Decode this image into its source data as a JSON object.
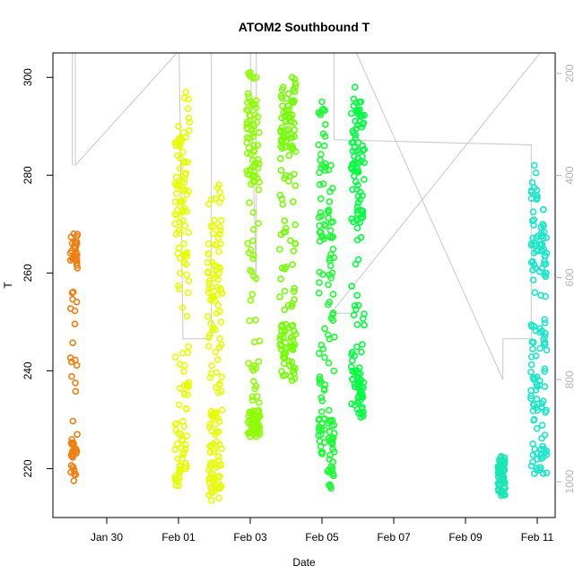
{
  "chart_data": {
    "type": "scatter",
    "title": "ATOM2 Southbound T",
    "xlabel": "Date",
    "ylabel": "T",
    "x_axis_type": "date",
    "xlim": [
      "2026-01-28T12:00",
      "2026-02-11T12:00"
    ],
    "x_ticks": [
      {
        "label": "Jan 30",
        "date": "2026-01-30"
      },
      {
        "label": "Feb 01",
        "date": "2026-02-01"
      },
      {
        "label": "Feb 03",
        "date": "2026-02-03"
      },
      {
        "label": "Feb 05",
        "date": "2026-02-05"
      },
      {
        "label": "Feb 07",
        "date": "2026-02-07"
      },
      {
        "label": "Feb 09",
        "date": "2026-02-09"
      },
      {
        "label": "Feb 11",
        "date": "2026-02-11"
      }
    ],
    "ylim": [
      210,
      305
    ],
    "y_ticks": [
      220,
      240,
      260,
      280,
      300
    ],
    "y2": {
      "description": "right axis, inverted",
      "lim": [
        1070,
        160
      ],
      "ticks": [
        200,
        400,
        600,
        800,
        1000
      ],
      "color": "#b3b3b3"
    },
    "grid": false,
    "legend": "none",
    "profiles": [
      {
        "date": "2026-01-29T02:00",
        "t_min": 217.5,
        "t_max": 268.0,
        "color": "#f07f10",
        "dense_bottom": [
          217,
          226
        ],
        "dense_top": [
          262,
          268
        ]
      },
      {
        "date": "2026-02-01T00:00",
        "t_min": 216.5,
        "t_max": 290.0,
        "color": "#e6ff00",
        "dense_bottom": [
          217,
          228
        ],
        "dense_top": [
          270,
          290
        ]
      },
      {
        "date": "2026-02-01T05:00",
        "t_min": 220.0,
        "t_max": 297.0,
        "color": "#e6ff00",
        "dense_bottom": [
          220,
          240
        ],
        "dense_top": [
          260,
          297
        ]
      },
      {
        "date": "2026-02-01T22:00",
        "t_min": 213.5,
        "t_max": 275.0,
        "color": "#e6ff00",
        "dense_bottom": [
          214,
          232
        ],
        "dense_top": [
          245,
          275
        ]
      },
      {
        "date": "2026-02-02T03:00",
        "t_min": 214.0,
        "t_max": 278.0,
        "color": "#e6ff00",
        "dense_bottom": [
          215,
          240
        ],
        "dense_top": [
          240,
          278
        ]
      },
      {
        "date": "2026-02-03T00:00",
        "t_min": 226.5,
        "t_max": 301.0,
        "color": "#8cff00",
        "dense_bottom": [
          227,
          232
        ],
        "dense_top": [
          280,
          301
        ]
      },
      {
        "date": "2026-02-03T04:00",
        "t_min": 226.5,
        "t_max": 300.0,
        "color": "#8cff00",
        "dense_bottom": [
          227,
          232
        ],
        "dense_top": [
          275,
          300
        ]
      },
      {
        "date": "2026-02-03T22:00",
        "t_min": 239.0,
        "t_max": 298.0,
        "color": "#73ff00",
        "dense_bottom": [
          239,
          250
        ],
        "dense_top": [
          285,
          298
        ]
      },
      {
        "date": "2026-02-04T04:00",
        "t_min": 238.0,
        "t_max": 300.0,
        "color": "#73ff00",
        "dense_bottom": [
          238,
          250
        ],
        "dense_top": [
          285,
          300
        ]
      },
      {
        "date": "2026-02-05T00:00",
        "t_min": 223.0,
        "t_max": 295.0,
        "color": "#1aff33",
        "dense_bottom": [
          223,
          240
        ],
        "dense_top": [
          265,
          295
        ]
      },
      {
        "date": "2026-02-05T06:00",
        "t_min": 216.0,
        "t_max": 282.0,
        "color": "#1aff33",
        "dense_bottom": [
          216,
          232
        ],
        "dense_top": [
          250,
          282
        ]
      },
      {
        "date": "2026-02-05T22:00",
        "t_min": 233.0,
        "t_max": 298.0,
        "color": "#00ff40",
        "dense_bottom": [
          233,
          245
        ],
        "dense_top": [
          270,
          298
        ]
      },
      {
        "date": "2026-02-06T02:00",
        "t_min": 230.5,
        "t_max": 295.0,
        "color": "#00ff40",
        "dense_bottom": [
          231,
          240
        ],
        "dense_top": [
          270,
          295
        ]
      },
      {
        "date": "2026-02-10T00:00",
        "t_min": 214.5,
        "t_max": 222.5,
        "color": "#1ae6b3",
        "dense_bottom": [
          215,
          222
        ],
        "dense_top": [
          215,
          222
        ]
      },
      {
        "date": "2026-02-10T22:00",
        "t_min": 219.0,
        "t_max": 282.0,
        "color": "#1ae6c8",
        "dense_bottom": [
          220,
          250
        ],
        "dense_top": [
          260,
          282
        ]
      },
      {
        "date": "2026-02-11T04:00",
        "t_min": 219.0,
        "t_max": 273.0,
        "color": "#1ae6c8",
        "dense_bottom": [
          220,
          250
        ],
        "dense_top": [
          255,
          273
        ]
      }
    ],
    "track_color": "#c8c8c8",
    "track": [
      {
        "date": "2026-01-29T01:00",
        "y2": 380
      },
      {
        "date": "2026-01-29T01:00",
        "y2": 160
      },
      {
        "date": "2026-01-29T03:00",
        "y2": 160
      },
      {
        "date": "2026-01-29T03:00",
        "y2": 380
      },
      {
        "date": "2026-01-31T23:00",
        "y2": 160
      },
      {
        "date": "2026-02-01T00:30",
        "y2": 160
      },
      {
        "date": "2026-02-01T03:00",
        "y2": 720
      },
      {
        "date": "2026-02-01T22:00",
        "y2": 720
      },
      {
        "date": "2026-02-01T22:00",
        "y2": 160
      },
      {
        "date": "2026-02-02T03:00",
        "y2": 160
      },
      {
        "date": "2026-02-03T00:00",
        "y2": 160
      },
      {
        "date": "2026-02-03T04:00",
        "y2": 610
      },
      {
        "date": "2026-02-03T04:00",
        "y2": 160
      },
      {
        "date": "2026-02-05T08:00",
        "y2": 160
      },
      {
        "date": "2026-02-05T08:00",
        "y2": 330
      },
      {
        "date": "2026-02-10T20:00",
        "y2": 340
      },
      {
        "date": "2026-02-10T20:00",
        "y2": 720
      },
      {
        "date": "2026-02-10T01:00",
        "y2": 720
      },
      {
        "date": "2026-02-10T01:00",
        "y2": 800
      },
      {
        "date": "2026-02-05T23:00",
        "y2": 160
      },
      {
        "date": "2026-02-06T02:00",
        "y2": 160
      },
      {
        "date": "2026-02-11T00:00",
        "y2": 160
      },
      {
        "date": "2026-02-11T02:00",
        "y2": 160
      },
      {
        "date": "2026-02-05T06:00",
        "y2": 670
      },
      {
        "date": "2026-02-05T22:00",
        "y2": 670
      }
    ]
  }
}
